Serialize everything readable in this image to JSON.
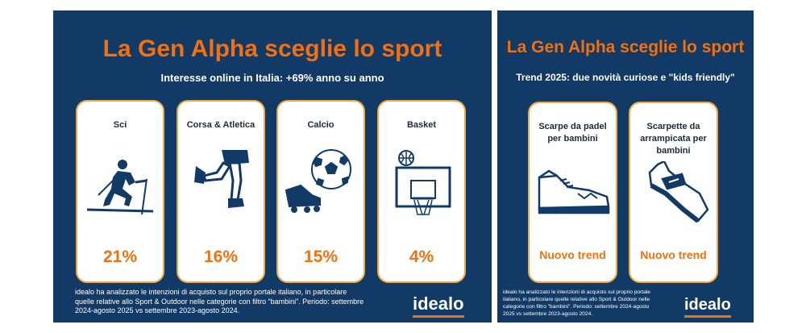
{
  "left_panel": {
    "title": "La Gen Alpha sceglie lo sport",
    "subtitle": "Interesse online in Italia: +69% anno su anno",
    "cards": [
      {
        "label": "Sci",
        "value": "21%",
        "icon": "skier-icon"
      },
      {
        "label": "Corsa & Atletica",
        "value": "16%",
        "icon": "runner-legs-icon"
      },
      {
        "label": "Calcio",
        "value": "15%",
        "icon": "soccer-icon"
      },
      {
        "label": "Basket",
        "value": "4%",
        "icon": "basketball-hoop-icon"
      }
    ],
    "note": "idealo ha analizzato le intenzioni di acquisto sul proprio portale italiano, in particolare quelle relative allo Sport & Outdoor nelle categorie con filtro “bambini”. Periodo: settembre 2024-agosto 2025 vs settembre 2023-agosto 2024.",
    "logo": "idealo"
  },
  "right_panel": {
    "title": "La Gen Alpha sceglie lo sport",
    "subtitle": "Trend 2025: due novità curiose e \"kids friendly\"",
    "cards": [
      {
        "label": "Scarpe da padel per bambini",
        "value": "Nuovo trend",
        "icon": "sneaker-icon"
      },
      {
        "label": "Scarpette da arrampicata per bambini",
        "value": "Nuovo trend",
        "icon": "climbing-shoe-icon"
      }
    ],
    "note": "idealo ha analizzato le intenzioni di acquisto sul proprio portale italiano, in particolare quelle relative allo Sport & Outdoor nelle categorie con filtro \"bambini\". Periodo: settembre 2024-agosto 2025 vs settembre 2023-agosto 2024.",
    "logo": "idealo"
  },
  "colors": {
    "panel_bg": "#123a66",
    "accent_orange": "#f2700f",
    "card_border": "#f2a83f",
    "card_bg": "#ffffff"
  }
}
